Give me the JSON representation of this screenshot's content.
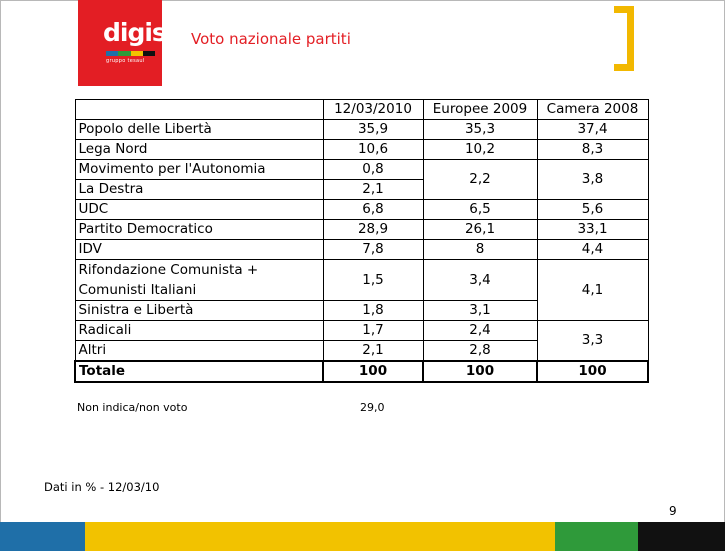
{
  "header": {
    "logo_word": "digis",
    "logo_sub": "gruppo tesaul",
    "title": "Voto nazionale partiti",
    "brand_red": "#e31e24",
    "bracket_color": "#f2b800"
  },
  "table": {
    "headers": [
      "",
      "12/03/2010",
      "Europee 2009",
      "Camera 2008"
    ],
    "rows": {
      "pdl": {
        "party": "Popolo delle Libertà",
        "v2010": "35,9",
        "eu2009": "35,3",
        "cam2008": "37,4"
      },
      "lega": {
        "party": "Lega Nord",
        "v2010": "10,6",
        "eu2009": "10,2",
        "cam2008": "8,3"
      },
      "mpa": {
        "party": "Movimento per l'Autonomia",
        "v2010": "0,8",
        "eu2009": "2,2",
        "cam2008": "3,8"
      },
      "destra": {
        "party": "La Destra",
        "v2010": "2,1"
      },
      "udc": {
        "party": "UDC",
        "v2010": "6,8",
        "eu2009": "6,5",
        "cam2008": "5,6"
      },
      "pd": {
        "party": "Partito Democratico",
        "v2010": "28,9",
        "eu2009": "26,1",
        "cam2008": "33,1"
      },
      "idv": {
        "party": "IDV",
        "v2010": "7,8",
        "eu2009": "8",
        "cam2008": "4,4"
      },
      "rifond": {
        "party_line1": "Rifondazione Comunista +",
        "party_line2": "Comunisti Italiani",
        "v2010": "1,5",
        "eu2009": "3,4",
        "cam2008": "4,1"
      },
      "sel": {
        "party": "Sinistra e Libertà",
        "v2010": "1,8",
        "eu2009": "3,1"
      },
      "radicali": {
        "party": "Radicali",
        "v2010": "1,7",
        "eu2009": "2,4",
        "cam2008": "3,3"
      },
      "altri": {
        "party": "Altri",
        "v2010": "2,1",
        "eu2009": "2,8"
      },
      "totale": {
        "party": "Totale",
        "v2010": "100",
        "eu2009": "100",
        "cam2008": "100"
      }
    }
  },
  "non_voto": {
    "label": "Non indica/non voto",
    "value": "29,0"
  },
  "footer": {
    "note": "Dati in % - 12/03/10",
    "page": "9"
  },
  "bottom_bar_colors": [
    "#1f6fa8",
    "#f2c200",
    "#2f9a3a",
    "#111111"
  ]
}
